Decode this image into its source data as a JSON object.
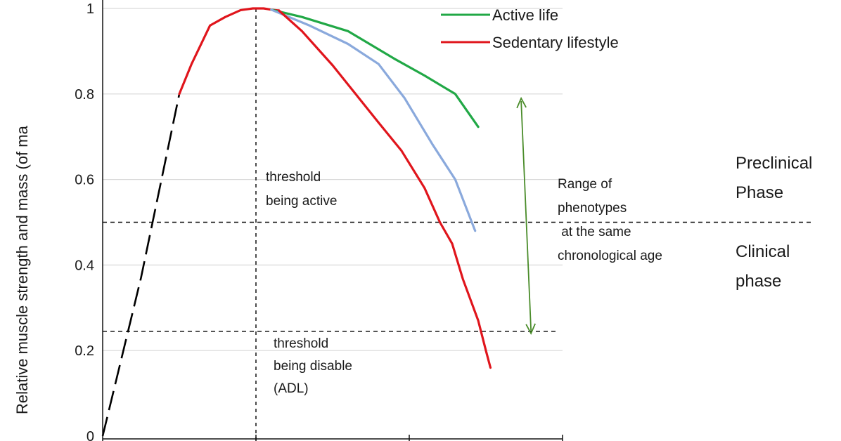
{
  "chart_data": {
    "type": "line",
    "title": "",
    "xlabel": "",
    "ylabel": "Relative muscle strength and mass (of ma",
    "ylim": [
      0,
      1
    ],
    "xlim": [
      0,
      3
    ],
    "y_ticks": [
      "0",
      "0.2",
      "0.4",
      "0.6",
      "0.8",
      "1"
    ],
    "grid": true,
    "legend_position": "top-right",
    "legend": [
      {
        "label": "Active life",
        "color": "#21a846"
      },
      {
        "label": "Sedentary lifestyle",
        "color": "#e0151c"
      }
    ],
    "series": [
      {
        "key": "early-growth",
        "color": "#000000",
        "style": "dashed",
        "points": [
          [
            0,
            0
          ],
          [
            0.25,
            0.37
          ],
          [
            0.5,
            0.8
          ]
        ]
      },
      {
        "key": "rise",
        "color": "#e0151c",
        "style": "solid",
        "points": [
          [
            0.5,
            0.8
          ],
          [
            0.58,
            0.87
          ],
          [
            0.7,
            0.96
          ],
          [
            0.8,
            0.98
          ],
          [
            0.9,
            0.996
          ],
          [
            0.98,
            1.0
          ],
          [
            1.05,
            1.0
          ],
          [
            1.1,
            0.997
          ],
          [
            1.15,
            0.995
          ]
        ]
      },
      {
        "key": "active",
        "name": "Active life",
        "color": "#21a846",
        "style": "solid",
        "points": [
          [
            1.1,
            0.997
          ],
          [
            1.3,
            0.98
          ],
          [
            1.6,
            0.947
          ],
          [
            1.9,
            0.883
          ],
          [
            2.1,
            0.843
          ],
          [
            2.3,
            0.8
          ],
          [
            2.45,
            0.723
          ]
        ]
      },
      {
        "key": "blue",
        "color": "#8aa9dc",
        "style": "solid",
        "points": [
          [
            1.1,
            0.997
          ],
          [
            1.35,
            0.96
          ],
          [
            1.6,
            0.917
          ],
          [
            1.8,
            0.87
          ],
          [
            1.97,
            0.79
          ],
          [
            2.15,
            0.683
          ],
          [
            2.3,
            0.6
          ],
          [
            2.43,
            0.48
          ]
        ]
      },
      {
        "key": "sedentary",
        "name": "Sedentary lifestyle",
        "color": "#e0151c",
        "style": "solid",
        "points": [
          [
            1.15,
            0.995
          ],
          [
            1.3,
            0.947
          ],
          [
            1.5,
            0.867
          ],
          [
            1.65,
            0.8
          ],
          [
            1.8,
            0.733
          ],
          [
            1.95,
            0.667
          ],
          [
            2.1,
            0.58
          ],
          [
            2.2,
            0.5
          ],
          [
            2.28,
            0.45
          ],
          [
            2.35,
            0.367
          ],
          [
            2.45,
            0.27
          ],
          [
            2.5,
            0.2
          ],
          [
            2.53,
            0.16
          ]
        ]
      }
    ],
    "x_threshold": {
      "x": 1.0
    },
    "h_thresholds": [
      {
        "y": 0.5,
        "key": "phase-line"
      },
      {
        "y": 0.245,
        "key": "disability-line"
      }
    ],
    "range_arrow": {
      "x": 2.73,
      "y_top": 0.79,
      "y_bottom": 0.24,
      "color": "#4a8c2a"
    },
    "annotations": {
      "threshold_active": [
        "threshold",
        "being active"
      ],
      "threshold_disable": [
        "threshold",
        "being disable",
        "(ADL)"
      ],
      "range": [
        "Range of",
        "phenotypes",
        " at the same",
        "chronological age"
      ],
      "preclinical": [
        "Preclinical",
        "Phase"
      ],
      "clinical": [
        "Clinical",
        "phase"
      ]
    }
  }
}
